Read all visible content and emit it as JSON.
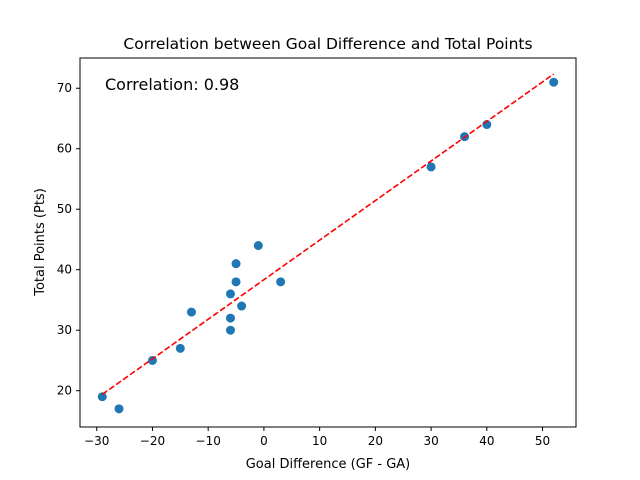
{
  "chart_data": {
    "type": "scatter",
    "title": "Correlation between Goal Difference and Total Points",
    "xlabel": "Goal Difference (GF - GA)",
    "ylabel": "Total Points (Pts)",
    "annotation": "Correlation: 0.98",
    "xlim": [
      -33,
      56
    ],
    "ylim": [
      14,
      75
    ],
    "xticks": [
      -30,
      -20,
      -10,
      0,
      10,
      20,
      30,
      40,
      50
    ],
    "yticks": [
      20,
      30,
      40,
      50,
      60,
      70
    ],
    "grid": false,
    "points": [
      {
        "x": -29,
        "y": 19
      },
      {
        "x": -26,
        "y": 17
      },
      {
        "x": -20,
        "y": 25
      },
      {
        "x": -15,
        "y": 27
      },
      {
        "x": -13,
        "y": 33
      },
      {
        "x": -6,
        "y": 36
      },
      {
        "x": -6,
        "y": 32
      },
      {
        "x": -6,
        "y": 30
      },
      {
        "x": -5,
        "y": 41
      },
      {
        "x": -5,
        "y": 38
      },
      {
        "x": -4,
        "y": 34
      },
      {
        "x": -1,
        "y": 44
      },
      {
        "x": 3,
        "y": 38
      },
      {
        "x": 30,
        "y": 57
      },
      {
        "x": 36,
        "y": 62
      },
      {
        "x": 40,
        "y": 64
      },
      {
        "x": 52,
        "y": 71
      }
    ],
    "trendline": {
      "x_start": -29,
      "x_end": 52,
      "slope": 0.654,
      "intercept": 38.35
    },
    "colors": {
      "points": "#1f77b4",
      "trendline": "#ff0000",
      "axes": "#000000"
    }
  }
}
